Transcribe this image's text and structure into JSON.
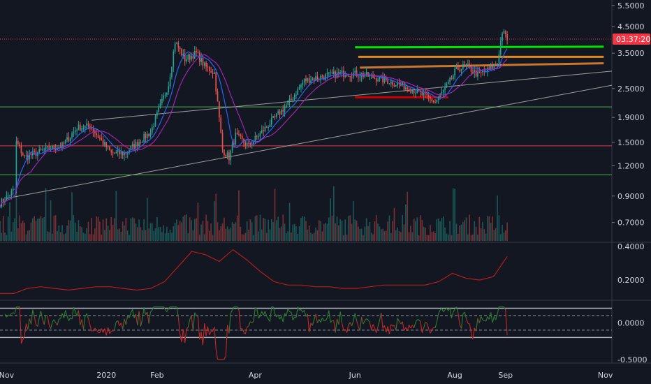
{
  "chart_data": [
    {
      "type": "candlestick",
      "panel": "price",
      "y_scale": "log",
      "ylim": [
        0.58,
        5.8
      ],
      "y_ticks": [
        "5.5000",
        "4.5000",
        "3.5000",
        "2.5000",
        "1.9000",
        "1.5000",
        "1.2000",
        "0.9000",
        "0.7000"
      ],
      "last_price_countdown": "03:37:20",
      "last_price": 4.0,
      "horizontal_lines": [
        {
          "price": 2.1,
          "color": "#4caf50"
        },
        {
          "price": 1.45,
          "color": "#f23645"
        },
        {
          "price": 1.1,
          "color": "#4caf50"
        },
        {
          "price": 4.0,
          "color": "#f23645",
          "style": "dotted"
        }
      ],
      "highlight_lines": [
        {
          "color": "#00e600",
          "from": "2020-06-01",
          "to": "2020-10-31",
          "y1": 3.7,
          "y2": 3.72
        },
        {
          "color": "#e08a1e",
          "from": "2020-06-03",
          "to": "2020-10-31",
          "y1": 3.38,
          "y2": 3.38
        },
        {
          "color": "#c9772d",
          "from": "2020-06-04",
          "to": "2020-10-31",
          "y1": 3.05,
          "y2": 3.18
        },
        {
          "color": "#cc0000",
          "from": "2020-06-01",
          "to": "2020-07-28",
          "y1": 2.3,
          "y2": 2.3
        }
      ],
      "trend_lines": [
        {
          "color": "#9e9e9e",
          "from": "2019-11-01",
          "to": "2020-11-05",
          "y1": 0.88,
          "y2": 2.58
        },
        {
          "color": "#9e9e9e",
          "from": "2019-12-23",
          "to": "2020-11-05",
          "y1": 1.85,
          "y2": 2.95
        }
      ],
      "volume": "bars at bottom of price panel"
    },
    {
      "type": "line",
      "panel": "indicator-1",
      "color": "#b71c1c",
      "ylim": [
        0.08,
        0.42
      ],
      "y_ticks": [
        "0.4000",
        "0.2000"
      ],
      "series": [
        {
          "values": [
            0.12,
            0.12,
            0.15,
            0.16,
            0.15,
            0.14,
            0.15,
            0.16,
            0.16,
            0.15,
            0.14,
            0.15,
            0.19,
            0.28,
            0.37,
            0.35,
            0.31,
            0.38,
            0.32,
            0.25,
            0.19,
            0.17,
            0.17,
            0.16,
            0.16,
            0.15,
            0.15,
            0.16,
            0.17,
            0.17,
            0.17,
            0.17,
            0.19,
            0.24,
            0.21,
            0.2,
            0.22,
            0.34
          ]
        }
      ]
    },
    {
      "type": "line",
      "panel": "indicator-2",
      "ylim": [
        -0.55,
        0.3
      ],
      "y_ticks": [
        "0.0000",
        "-0.5000"
      ],
      "reference_levels": [
        0.2,
        0.1,
        -0.1,
        -0.2
      ]
    }
  ],
  "x_axis": {
    "labels": [
      "Nov",
      "2020",
      "Feb",
      "Apr",
      "Jun",
      "Aug",
      "Sep",
      "Nov"
    ],
    "label_dates": [
      "2019-11-01",
      "2020-01-01",
      "2020-02-01",
      "2020-04-01",
      "2020-06-01",
      "2020-08-01",
      "2020-09-01",
      "2020-11-01"
    ],
    "range": [
      "2019-10-28",
      "2020-11-05"
    ]
  },
  "colors": {
    "background": "#131722",
    "up": "#26a69a",
    "down": "#ef5350",
    "ma1": "#2962ff",
    "ma2": "#9c27b0",
    "osc_pos": "#2e7d32",
    "osc_neg": "#c62828"
  }
}
